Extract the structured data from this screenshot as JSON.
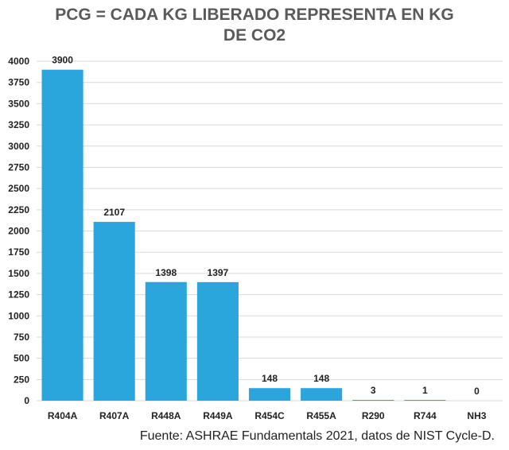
{
  "chart_data": {
    "type": "bar",
    "title_line1": "PCG = CADA KG LIBERADO REPRESENTA EN KG",
    "title_line2": "DE CO2",
    "categories": [
      "R404A",
      "R407A",
      "R448A",
      "R449A",
      "R454C",
      "R455A",
      "R290",
      "R744",
      "NH3"
    ],
    "values": [
      3900,
      2107,
      1398,
      1397,
      148,
      148,
      3,
      1,
      0
    ],
    "data_labels": [
      "3900",
      "2107",
      "1398",
      "1397",
      "148",
      "148",
      "3",
      "1",
      "0"
    ],
    "ylim": [
      0,
      4000
    ],
    "yticks": [
      0,
      250,
      500,
      750,
      1000,
      1250,
      1500,
      1750,
      2000,
      2250,
      2500,
      2750,
      3000,
      3250,
      3500,
      3750,
      4000
    ],
    "xlabel": "",
    "ylabel": "",
    "grid": true,
    "bar_color": "#2aa6dc",
    "grid_color": "#d9d9d9"
  },
  "source_note": "Fuente: ASHRAE Fundamentals 2021, datos de NIST Cycle-D."
}
